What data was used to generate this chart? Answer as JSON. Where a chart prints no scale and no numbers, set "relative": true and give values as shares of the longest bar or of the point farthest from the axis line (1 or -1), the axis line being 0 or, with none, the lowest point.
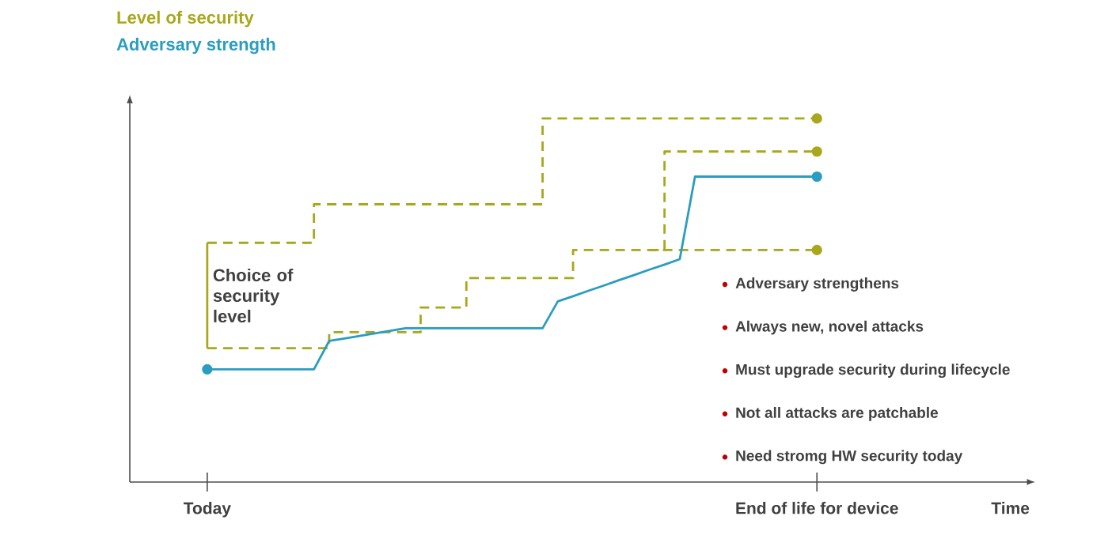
{
  "chart_data": {
    "type": "line",
    "relative": true,
    "categories": [
      "Today",
      null,
      null,
      null,
      null,
      null,
      null,
      null,
      null,
      null,
      null,
      null,
      null,
      null,
      null,
      null,
      null,
      null,
      null,
      null,
      null,
      null,
      null,
      null,
      null,
      null,
      null,
      null,
      null,
      null,
      null,
      null,
      null,
      null,
      null,
      null,
      null,
      null,
      null,
      null,
      "End of life for device"
    ],
    "annotations": [
      "Time",
      "Choice of security level",
      "Adversary strengthens",
      "Always new, novel attacks",
      "Must upgrade security during lifecycle",
      "Not all attacks are patchable",
      "Need stromg HW security today"
    ],
    "series": [
      {
        "name": "Level of security",
        "type": "step",
        "color": "#a9a71c",
        "line_style": "dashed",
        "values": [
          0.658,
          0.658,
          0.658,
          0.658,
          0.658,
          0.658,
          0.658,
          0.764,
          0.764,
          0.764,
          0.764,
          0.764,
          0.764,
          0.764,
          0.764,
          0.764,
          0.764,
          0.764,
          0.764,
          0.764,
          0.764,
          0.764,
          1.0,
          1.0,
          1.0,
          1.0,
          1.0,
          1.0,
          1.0,
          1.0,
          1.0,
          1.0,
          1.0,
          1.0,
          1.0,
          1.0,
          1.0,
          1.0,
          1.0,
          1.0,
          1.0
        ]
      },
      {
        "type": "step",
        "color": "#a9a71c",
        "line_style": "dashed",
        "values": [
          null,
          null,
          null,
          null,
          null,
          null,
          null,
          null,
          null,
          null,
          null,
          null,
          null,
          null,
          null,
          null,
          null,
          null,
          null,
          null,
          null,
          null,
          null,
          null,
          null,
          null,
          null,
          null,
          null,
          0.638,
          0.909,
          0.909,
          0.909,
          0.909,
          0.909,
          0.909,
          0.909,
          0.909,
          0.909,
          0.909,
          0.909
        ]
      },
      {
        "type": "step",
        "color": "#a9a71c",
        "line_style": "dashed",
        "values": [
          0.368,
          0.368,
          0.368,
          0.368,
          0.368,
          0.368,
          0.368,
          0.368,
          0.412,
          0.412,
          0.412,
          0.412,
          0.412,
          0.412,
          0.48,
          0.48,
          0.48,
          0.561,
          0.561,
          0.561,
          0.561,
          0.561,
          0.561,
          0.561,
          0.638,
          0.638,
          0.638,
          0.638,
          0.638,
          0.638,
          0.638,
          0.638,
          0.638,
          0.638,
          0.638,
          0.638,
          0.638,
          0.638,
          0.638,
          0.638,
          0.638
        ]
      },
      {
        "name": "Adversary strength",
        "color": "#2a9dc0",
        "line_style": "solid",
        "values": [
          0.31,
          0.31,
          0.31,
          0.31,
          0.31,
          0.31,
          0.31,
          0.31,
          0.388,
          0.395,
          0.402,
          0.409,
          0.416,
          0.423,
          0.423,
          0.423,
          0.423,
          0.423,
          0.423,
          0.423,
          0.423,
          0.423,
          0.423,
          0.497,
          0.511,
          0.526,
          0.54,
          0.555,
          0.569,
          0.584,
          0.598,
          0.613,
          0.84,
          0.84,
          0.84,
          0.84,
          0.84,
          0.84,
          0.84,
          0.84,
          0.84
        ]
      }
    ]
  }
}
